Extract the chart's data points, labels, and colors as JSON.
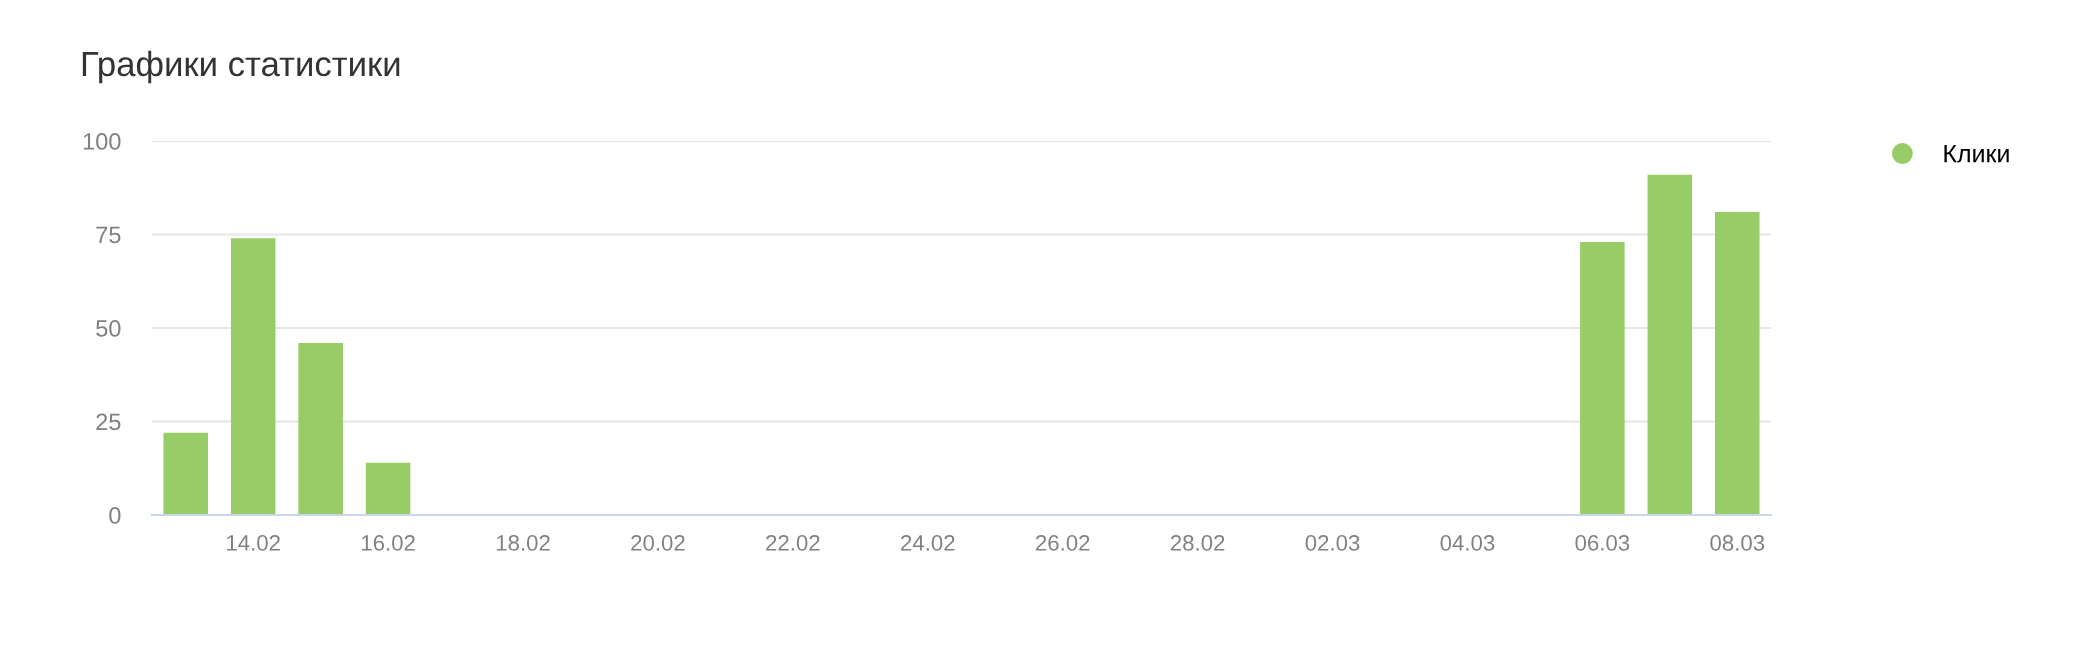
{
  "chart_data": {
    "type": "bar",
    "title": "Графики статистики",
    "categories": [
      null,
      "14.02",
      null,
      "16.02",
      null,
      "18.02",
      null,
      "20.02",
      null,
      "22.02",
      null,
      "24.02",
      null,
      "26.02",
      null,
      "28.02",
      null,
      "02.03",
      null,
      "04.03",
      null,
      "06.03",
      null,
      "08.03"
    ],
    "series": [
      {
        "name": "Клики",
        "color": "#98cc66",
        "values": [
          22,
          74,
          46,
          14,
          0,
          0,
          0,
          0,
          0,
          0,
          0,
          0,
          0,
          0,
          0,
          0,
          0,
          0,
          0,
          0,
          0,
          73,
          91,
          81
        ]
      }
    ],
    "ylim": [
      0,
      100
    ],
    "yticks": [
      0,
      25,
      50,
      75,
      100
    ],
    "grid": "y",
    "legend": "top right"
  }
}
